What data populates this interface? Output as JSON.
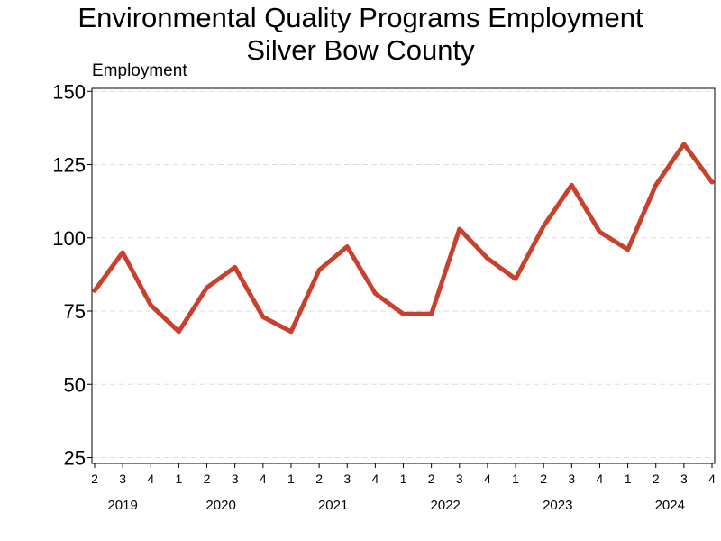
{
  "chart_data": {
    "type": "line",
    "title": "Environmental Quality Programs Employment",
    "subtitle": "Silver Bow County",
    "ylabel": "Employment",
    "xlabel": "",
    "ylim": [
      23,
      151
    ],
    "yticks": [
      25,
      50,
      75,
      100,
      125,
      150
    ],
    "grid": "horizontal dashed",
    "line_color": "#c8412e",
    "x": [
      {
        "quarter": "2",
        "year": "2019"
      },
      {
        "quarter": "3",
        "year": "2019"
      },
      {
        "quarter": "4",
        "year": "2019"
      },
      {
        "quarter": "1",
        "year": "2020"
      },
      {
        "quarter": "2",
        "year": "2020"
      },
      {
        "quarter": "3",
        "year": "2020"
      },
      {
        "quarter": "4",
        "year": "2020"
      },
      {
        "quarter": "1",
        "year": "2021"
      },
      {
        "quarter": "2",
        "year": "2021"
      },
      {
        "quarter": "3",
        "year": "2021"
      },
      {
        "quarter": "4",
        "year": "2021"
      },
      {
        "quarter": "1",
        "year": "2022"
      },
      {
        "quarter": "2",
        "year": "2022"
      },
      {
        "quarter": "3",
        "year": "2022"
      },
      {
        "quarter": "4",
        "year": "2022"
      },
      {
        "quarter": "1",
        "year": "2023"
      },
      {
        "quarter": "2",
        "year": "2023"
      },
      {
        "quarter": "3",
        "year": "2023"
      },
      {
        "quarter": "4",
        "year": "2023"
      },
      {
        "quarter": "1",
        "year": "2024"
      },
      {
        "quarter": "2",
        "year": "2024"
      },
      {
        "quarter": "3",
        "year": "2024"
      },
      {
        "quarter": "4",
        "year": "2024"
      }
    ],
    "year_labels": [
      "2019",
      "2020",
      "2021",
      "2022",
      "2023",
      "2024"
    ],
    "series": [
      {
        "values": [
          82,
          95,
          77,
          68,
          83,
          90,
          73,
          68,
          89,
          97,
          81,
          74,
          74,
          103,
          93,
          86,
          104,
          118,
          102,
          96,
          118,
          132,
          119
        ]
      }
    ]
  }
}
